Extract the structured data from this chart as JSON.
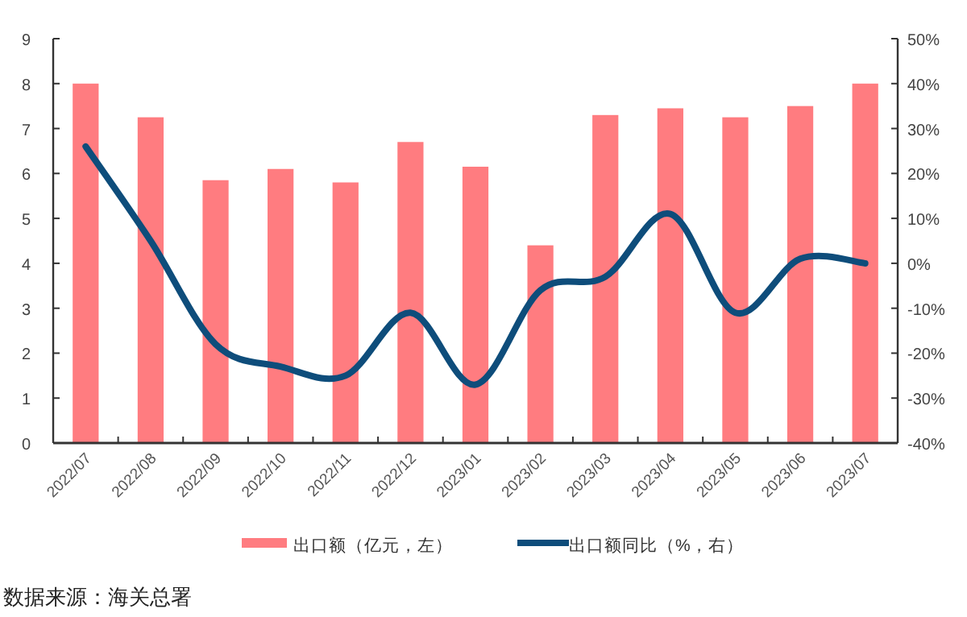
{
  "chart_data": {
    "type": "bar",
    "categories": [
      "2022/07",
      "2022/08",
      "2022/09",
      "2022/10",
      "2022/11",
      "2022/12",
      "2023/01",
      "2023/02",
      "2023/03",
      "2023/04",
      "2023/05",
      "2023/06",
      "2023/07"
    ],
    "series": [
      {
        "name": "出口额（亿元，左）",
        "color": "#ff7c80",
        "values": [
          8.0,
          7.25,
          5.85,
          6.1,
          5.8,
          6.7,
          6.15,
          4.4,
          7.3,
          7.45,
          7.25,
          7.5,
          8.0
        ]
      },
      {
        "name": "出口额同比（%，右）",
        "type": "line",
        "axis": "y2",
        "color": "#0e4d7b",
        "values": [
          26,
          5,
          -18,
          -23,
          -25,
          -11,
          -27,
          -6,
          -3,
          11,
          -11,
          1,
          0
        ]
      }
    ],
    "ylim": [
      0,
      9
    ],
    "yticks": [
      0,
      1,
      2,
      3,
      4,
      5,
      6,
      7,
      8,
      9
    ],
    "y2lim": [
      -40,
      50
    ],
    "y2ticks": [
      {
        "value": -40,
        "label": "-40%"
      },
      {
        "value": -30,
        "label": "-30%"
      },
      {
        "value": -20,
        "label": "-20%"
      },
      {
        "value": -10,
        "label": "-10%"
      },
      {
        "value": 0,
        "label": "0%"
      },
      {
        "value": 10,
        "label": "10%"
      },
      {
        "value": 20,
        "label": "20%"
      },
      {
        "value": 30,
        "label": "30%"
      },
      {
        "value": 40,
        "label": "40%"
      },
      {
        "value": 50,
        "label": "50%"
      }
    ],
    "grid": false,
    "legend": "bottom",
    "line_style": "solid",
    "annotations": [
      "数据来源：海关总署"
    ]
  }
}
